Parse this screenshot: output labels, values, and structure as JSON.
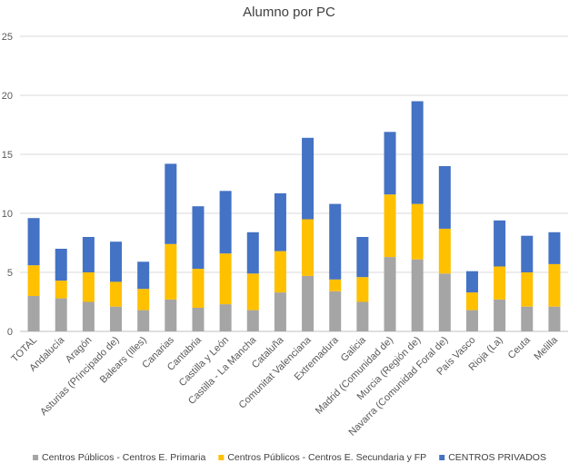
{
  "chart_data": {
    "type": "bar",
    "stacked": true,
    "title": "Alumno  por  PC",
    "xlabel": "",
    "ylabel": "",
    "ylim": [
      0,
      25
    ],
    "yticks": [
      0,
      5,
      10,
      15,
      20,
      25
    ],
    "grid": true,
    "legend_position": "bottom",
    "categories": [
      "TOTAL",
      "Andalucía",
      "Aragón",
      "Asturias (Principado de)",
      "Balears (Illes)",
      "Canarias",
      "Cantabria",
      "Castilla y León",
      "Castilla - La Mancha",
      "Cataluña",
      "Comunitat Valenciana",
      "Extremadura",
      "Galicia",
      "Madrid (Comunidad de)",
      "Murcia (Región de)",
      "Navarra (Comunidad Foral de)",
      "País Vasco",
      "Rioja (La)",
      "Ceuta",
      "Melilla"
    ],
    "series": [
      {
        "name": "Centros Públicos - Centros E. Primaria",
        "color": "#a5a5a5",
        "values": [
          3.0,
          2.8,
          2.5,
          2.1,
          1.8,
          2.7,
          2.0,
          2.3,
          1.8,
          3.3,
          4.7,
          3.4,
          2.5,
          6.3,
          6.1,
          4.9,
          1.8,
          2.7,
          2.1,
          2.1
        ]
      },
      {
        "name": "Centros Públicos - Centros E. Secundaria y FP",
        "color": "#ffc000",
        "values": [
          2.6,
          1.5,
          2.5,
          2.1,
          1.8,
          4.7,
          3.3,
          4.3,
          3.1,
          3.5,
          4.8,
          1.0,
          2.1,
          5.3,
          4.7,
          3.8,
          1.5,
          2.8,
          2.9,
          3.6
        ]
      },
      {
        "name": "CENTROS PRIVADOS",
        "color": "#4472c4",
        "values": [
          4.0,
          2.7,
          3.0,
          3.4,
          2.3,
          6.8,
          5.3,
          5.3,
          3.5,
          4.9,
          6.9,
          6.4,
          3.4,
          5.3,
          8.7,
          5.3,
          1.8,
          3.9,
          3.1,
          2.7
        ]
      }
    ]
  }
}
